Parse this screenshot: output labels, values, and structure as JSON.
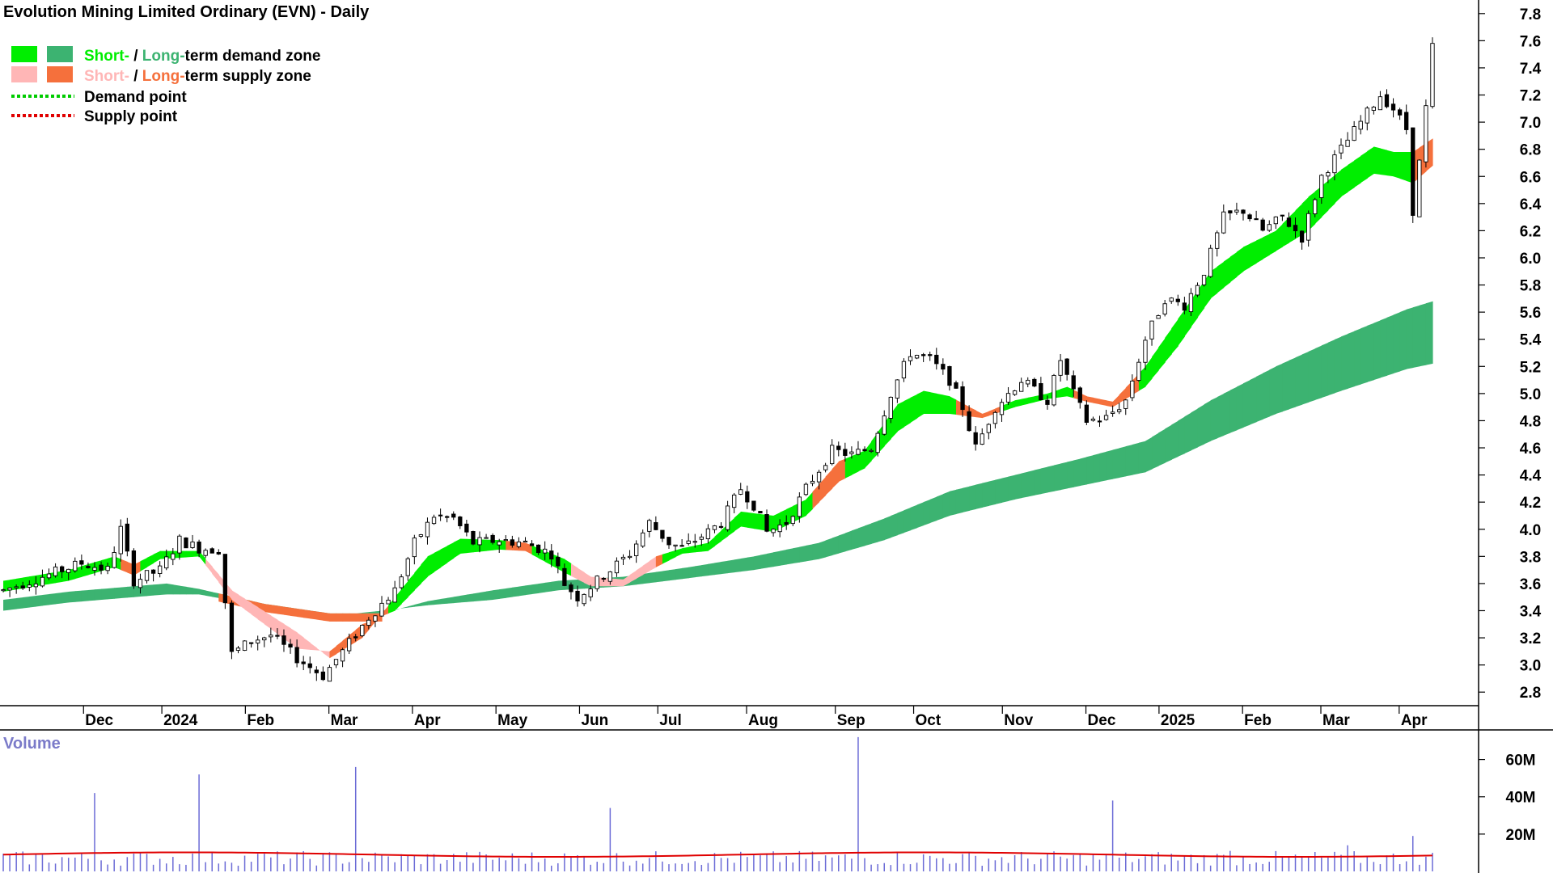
{
  "title": "Evolution Mining Limited Ordinary (EVN) - Daily",
  "legend": {
    "demand_zone": {
      "short_word": "Short-",
      "separator": " / ",
      "long_word": "Long-",
      "rest": "term demand zone"
    },
    "supply_zone": {
      "short_word": "Short-",
      "separator": " / ",
      "long_word": "Long-",
      "rest": "term supply zone"
    },
    "demand_point": "Demand point",
    "supply_point": "Supply point"
  },
  "colors": {
    "short_demand": "#00ee00",
    "long_demand": "#3cb371",
    "short_supply": "#ffb6b6",
    "long_supply": "#f5703c",
    "demand_point": "#00cc00",
    "supply_point": "#e00000",
    "volume_bar": "#6b6bd6",
    "volume_avg": "#e00000",
    "candle": "#000000"
  },
  "volume_title": "Volume",
  "chart_data": {
    "type": "candlestick",
    "price_axis": {
      "ylim": [
        2.7,
        7.9
      ],
      "ticks": [
        "2.8",
        "3.0",
        "3.2",
        "3.4",
        "3.6",
        "3.8",
        "4.0",
        "4.2",
        "4.4",
        "4.6",
        "4.8",
        "5.0",
        "5.2",
        "5.4",
        "5.6",
        "5.8",
        "6.0",
        "6.2",
        "6.4",
        "6.6",
        "6.8",
        "7.0",
        "7.2",
        "7.4",
        "7.6",
        "7.8"
      ]
    },
    "volume_axis": {
      "ylim": [
        0,
        75
      ],
      "unit": "M",
      "ticks": [
        "20M",
        "40M",
        "60M"
      ]
    },
    "month_labels": [
      "Dec",
      "2024",
      "Feb",
      "Mar",
      "Apr",
      "May",
      "Jun",
      "Jul",
      "Aug",
      "Sep",
      "Oct",
      "Nov",
      "Dec",
      "2025",
      "Feb",
      "Mar",
      "Apr"
    ],
    "grid": false,
    "legend_position": "top-left",
    "price_path": [
      [
        0,
        3.55
      ],
      [
        6,
        3.65
      ],
      [
        12,
        3.75
      ],
      [
        16,
        3.7
      ],
      [
        18,
        4.0
      ],
      [
        20,
        3.62
      ],
      [
        24,
        3.7
      ],
      [
        27,
        3.92
      ],
      [
        30,
        3.86
      ],
      [
        33,
        3.85
      ],
      [
        35,
        3.08
      ],
      [
        38,
        3.18
      ],
      [
        41,
        3.22
      ],
      [
        45,
        3.05
      ],
      [
        49,
        2.92
      ],
      [
        52,
        3.1
      ],
      [
        56,
        3.35
      ],
      [
        60,
        3.55
      ],
      [
        63,
        3.9
      ],
      [
        66,
        4.1
      ],
      [
        69,
        4.08
      ],
      [
        72,
        3.9
      ],
      [
        76,
        3.92
      ],
      [
        80,
        3.9
      ],
      [
        84,
        3.82
      ],
      [
        86,
        3.6
      ],
      [
        88,
        3.5
      ],
      [
        90,
        3.58
      ],
      [
        93,
        3.7
      ],
      [
        96,
        3.82
      ],
      [
        99,
        4.05
      ],
      [
        102,
        3.9
      ],
      [
        104,
        3.86
      ],
      [
        108,
        3.98
      ],
      [
        110,
        4.05
      ],
      [
        113,
        4.3
      ],
      [
        115,
        4.18
      ],
      [
        117,
        3.98
      ],
      [
        120,
        4.05
      ],
      [
        123,
        4.3
      ],
      [
        127,
        4.58
      ],
      [
        130,
        4.55
      ],
      [
        133,
        4.6
      ],
      [
        136,
        5.0
      ],
      [
        139,
        5.3
      ],
      [
        142,
        5.25
      ],
      [
        145,
        5.1
      ],
      [
        147,
        4.9
      ],
      [
        149,
        4.6
      ],
      [
        152,
        4.9
      ],
      [
        156,
        5.1
      ],
      [
        160,
        4.95
      ],
      [
        162,
        5.25
      ],
      [
        164,
        5.0
      ],
      [
        166,
        4.8
      ],
      [
        169,
        4.82
      ],
      [
        172,
        4.95
      ],
      [
        175,
        5.4
      ],
      [
        178,
        5.7
      ],
      [
        181,
        5.65
      ],
      [
        184,
        5.9
      ],
      [
        187,
        6.3
      ],
      [
        190,
        6.35
      ],
      [
        193,
        6.2
      ],
      [
        196,
        6.3
      ],
      [
        199,
        6.15
      ],
      [
        202,
        6.6
      ],
      [
        205,
        6.8
      ],
      [
        208,
        7.0
      ],
      [
        211,
        7.2
      ],
      [
        213,
        7.1
      ],
      [
        215,
        6.95
      ],
      [
        216,
        6.35
      ],
      [
        217,
        6.7
      ],
      [
        218,
        7.1
      ],
      [
        219,
        7.55
      ]
    ],
    "short_zone": [
      [
        0,
        3.62,
        3.54
      ],
      [
        10,
        3.7,
        3.62
      ],
      [
        17,
        3.8,
        3.72
      ],
      [
        20,
        3.74,
        3.66
      ],
      [
        24,
        3.84,
        3.78
      ],
      [
        30,
        3.84,
        3.8
      ],
      [
        35,
        3.55,
        3.48
      ],
      [
        45,
        3.24,
        3.12
      ],
      [
        50,
        3.05,
        3.1
      ],
      [
        55,
        3.2,
        3.3
      ],
      [
        60,
        3.5,
        3.4
      ],
      [
        65,
        3.8,
        3.65
      ],
      [
        70,
        3.93,
        3.82
      ],
      [
        76,
        3.92,
        3.85
      ],
      [
        80,
        3.9,
        3.84
      ],
      [
        86,
        3.78,
        3.68
      ],
      [
        90,
        3.65,
        3.58
      ],
      [
        95,
        3.63,
        3.58
      ],
      [
        100,
        3.8,
        3.72
      ],
      [
        104,
        3.86,
        3.82
      ],
      [
        108,
        3.9,
        3.84
      ],
      [
        113,
        4.13,
        4.02
      ],
      [
        118,
        4.1,
        3.98
      ],
      [
        123,
        4.22,
        4.1
      ],
      [
        128,
        4.5,
        4.35
      ],
      [
        132,
        4.58,
        4.45
      ],
      [
        137,
        4.92,
        4.72
      ],
      [
        141,
        5.02,
        4.85
      ],
      [
        145,
        4.98,
        4.85
      ],
      [
        150,
        4.85,
        4.82
      ],
      [
        155,
        4.95,
        4.9
      ],
      [
        160,
        5.0,
        4.96
      ],
      [
        163,
        5.05,
        4.98
      ],
      [
        166,
        4.98,
        4.94
      ],
      [
        170,
        4.94,
        4.9
      ],
      [
        175,
        5.2,
        5.05
      ],
      [
        180,
        5.55,
        5.35
      ],
      [
        185,
        5.9,
        5.7
      ],
      [
        190,
        6.08,
        5.9
      ],
      [
        195,
        6.2,
        6.05
      ],
      [
        200,
        6.45,
        6.2
      ],
      [
        205,
        6.65,
        6.45
      ],
      [
        210,
        6.82,
        6.62
      ],
      [
        213,
        6.78,
        6.6
      ],
      [
        216,
        6.78,
        6.55
      ],
      [
        219,
        6.88,
        6.68
      ]
    ],
    "long_zone": [
      [
        0,
        3.48,
        3.4
      ],
      [
        10,
        3.54,
        3.46
      ],
      [
        20,
        3.58,
        3.5
      ],
      [
        25,
        3.6,
        3.52
      ],
      [
        30,
        3.56,
        3.52
      ],
      [
        40,
        3.45,
        3.43
      ],
      [
        50,
        3.38,
        3.36
      ],
      [
        58,
        3.38,
        3.4
      ],
      [
        65,
        3.47,
        3.44
      ],
      [
        75,
        3.55,
        3.48
      ],
      [
        85,
        3.62,
        3.55
      ],
      [
        95,
        3.65,
        3.58
      ],
      [
        105,
        3.72,
        3.64
      ],
      [
        115,
        3.8,
        3.7
      ],
      [
        125,
        3.9,
        3.78
      ],
      [
        135,
        4.08,
        3.92
      ],
      [
        145,
        4.28,
        4.1
      ],
      [
        155,
        4.4,
        4.22
      ],
      [
        165,
        4.52,
        4.32
      ],
      [
        175,
        4.65,
        4.42
      ],
      [
        185,
        4.95,
        4.65
      ],
      [
        195,
        5.2,
        4.85
      ],
      [
        205,
        5.42,
        5.02
      ],
      [
        215,
        5.62,
        5.18
      ],
      [
        219,
        5.68,
        5.22
      ]
    ],
    "zone_segments": [
      {
        "from": 0,
        "to": 17,
        "kind": "demand"
      },
      {
        "from": 17,
        "to": 20,
        "kind": "supply"
      },
      {
        "from": 20,
        "to": 30,
        "kind": "demand"
      },
      {
        "from": 30,
        "to": 50,
        "kind": "supply"
      },
      {
        "from": 50,
        "to": 58,
        "kind": "supply"
      },
      {
        "from": 58,
        "to": 76,
        "kind": "demand"
      },
      {
        "from": 76,
        "to": 80,
        "kind": "supply"
      },
      {
        "from": 80,
        "to": 86,
        "kind": "demand"
      },
      {
        "from": 86,
        "to": 100,
        "kind": "supply"
      },
      {
        "from": 100,
        "to": 123,
        "kind": "demand"
      },
      {
        "from": 123,
        "to": 128,
        "kind": "supply"
      },
      {
        "from": 128,
        "to": 145,
        "kind": "demand"
      },
      {
        "from": 145,
        "to": 152,
        "kind": "supply"
      },
      {
        "from": 152,
        "to": 163,
        "kind": "demand"
      },
      {
        "from": 163,
        "to": 173,
        "kind": "supply"
      },
      {
        "from": 173,
        "to": 215,
        "kind": "demand"
      },
      {
        "from": 215,
        "to": 219,
        "kind": "supply"
      }
    ],
    "volume_spikes": [
      {
        "bar": 14,
        "value": 42
      },
      {
        "bar": 30,
        "value": 52
      },
      {
        "bar": 54,
        "value": 56
      },
      {
        "bar": 93,
        "value": 34
      },
      {
        "bar": 131,
        "value": 72
      },
      {
        "bar": 170,
        "value": 38
      },
      {
        "bar": 216,
        "value": 19
      },
      {
        "bar": 206,
        "value": 14
      },
      {
        "bar": 188,
        "value": 11
      }
    ],
    "volume_avg": 9
  }
}
